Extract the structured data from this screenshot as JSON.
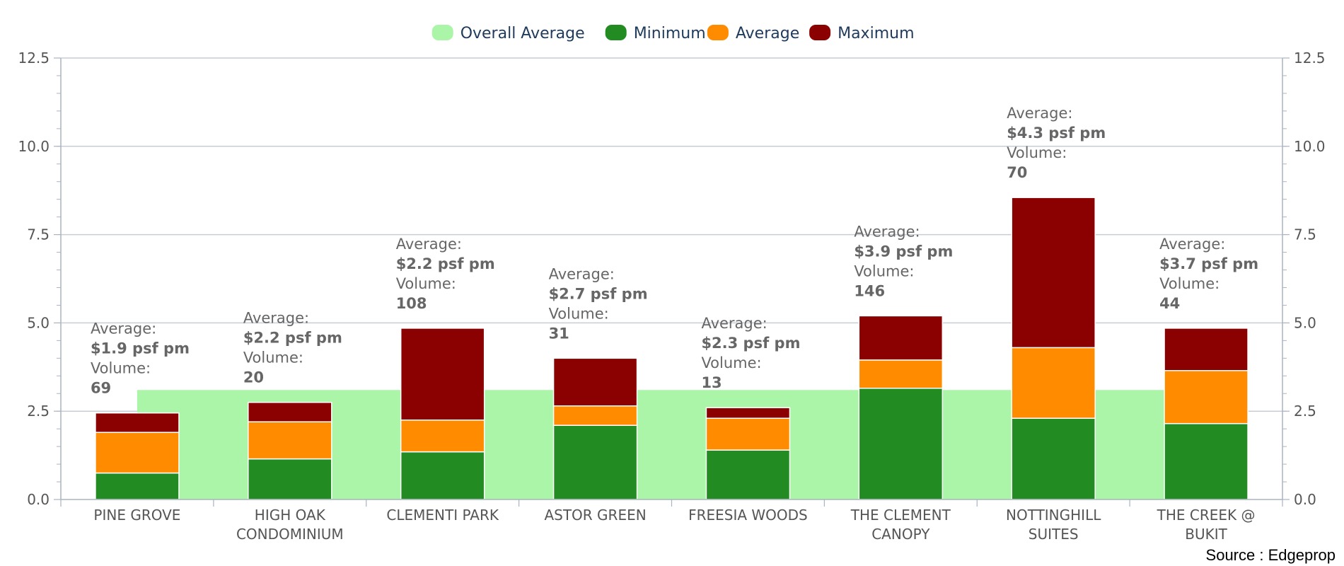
{
  "chart_data": {
    "type": "bar",
    "stacked": true,
    "categories": [
      [
        "PINE GROVE"
      ],
      [
        "HIGH OAK",
        "CONDOMINIUM"
      ],
      [
        "CLEMENTI PARK"
      ],
      [
        "ASTOR GREEN"
      ],
      [
        "FREESIA WOODS"
      ],
      [
        "THE CLEMENT",
        "CANOPY"
      ],
      [
        "NOTTINGHILL",
        "SUITES"
      ],
      [
        "THE CREEK @",
        "BUKIT"
      ]
    ],
    "legend": [
      {
        "name": "Overall Average",
        "color": "#aaf5a8"
      },
      {
        "name": "Minimum",
        "color": "#228b22"
      },
      {
        "name": "Average",
        "color": "#ff8c00"
      },
      {
        "name": "Maximum",
        "color": "#8b0000"
      }
    ],
    "legend_position": "top-center",
    "series": [
      {
        "name": "Minimum",
        "color": "#228b22",
        "values": [
          0.75,
          1.15,
          1.35,
          2.1,
          1.4,
          3.15,
          2.3,
          2.15
        ]
      },
      {
        "name": "Average",
        "color": "#ff8c00",
        "values": [
          1.15,
          1.05,
          0.9,
          0.55,
          0.9,
          0.8,
          2.0,
          1.5
        ]
      },
      {
        "name": "Maximum",
        "color": "#8b0000",
        "values": [
          0.55,
          0.55,
          2.6,
          1.35,
          0.3,
          1.25,
          4.25,
          1.2
        ]
      }
    ],
    "overall_average": {
      "value": 3.1,
      "color": "#aaf5a8"
    },
    "annotations": [
      {
        "label1": "Average:",
        "value1": "$1.9 psf pm",
        "label2": "Volume:",
        "value2": "69"
      },
      {
        "label1": "Average:",
        "value1": "$2.2 psf pm",
        "label2": "Volume:",
        "value2": "20"
      },
      {
        "label1": "Average:",
        "value1": "$2.2 psf pm",
        "label2": "Volume:",
        "value2": "108"
      },
      {
        "label1": "Average:",
        "value1": "$2.7 psf pm",
        "label2": "Volume:",
        "value2": "31"
      },
      {
        "label1": "Average:",
        "value1": "$2.3 psf pm",
        "label2": "Volume:",
        "value2": "13"
      },
      {
        "label1": "Average:",
        "value1": "$3.9 psf pm",
        "label2": "Volume:",
        "value2": "146"
      },
      {
        "label1": "Average:",
        "value1": "$4.3 psf pm",
        "label2": "Volume:",
        "value2": "70"
      },
      {
        "label1": "Average:",
        "value1": "$3.7 psf pm",
        "label2": "Volume:",
        "value2": "44"
      }
    ],
    "ylim": [
      0,
      12.5
    ],
    "yticks": [
      "0.0",
      "2.5",
      "5.0",
      "7.5",
      "10.0",
      "12.5"
    ],
    "ytick_values": [
      0,
      2.5,
      5,
      7.5,
      10,
      12.5
    ],
    "grid": true,
    "dual_y_axis_labels": true,
    "title": "",
    "xlabel": "",
    "ylabel": ""
  },
  "source": "Source : Edgeprop"
}
